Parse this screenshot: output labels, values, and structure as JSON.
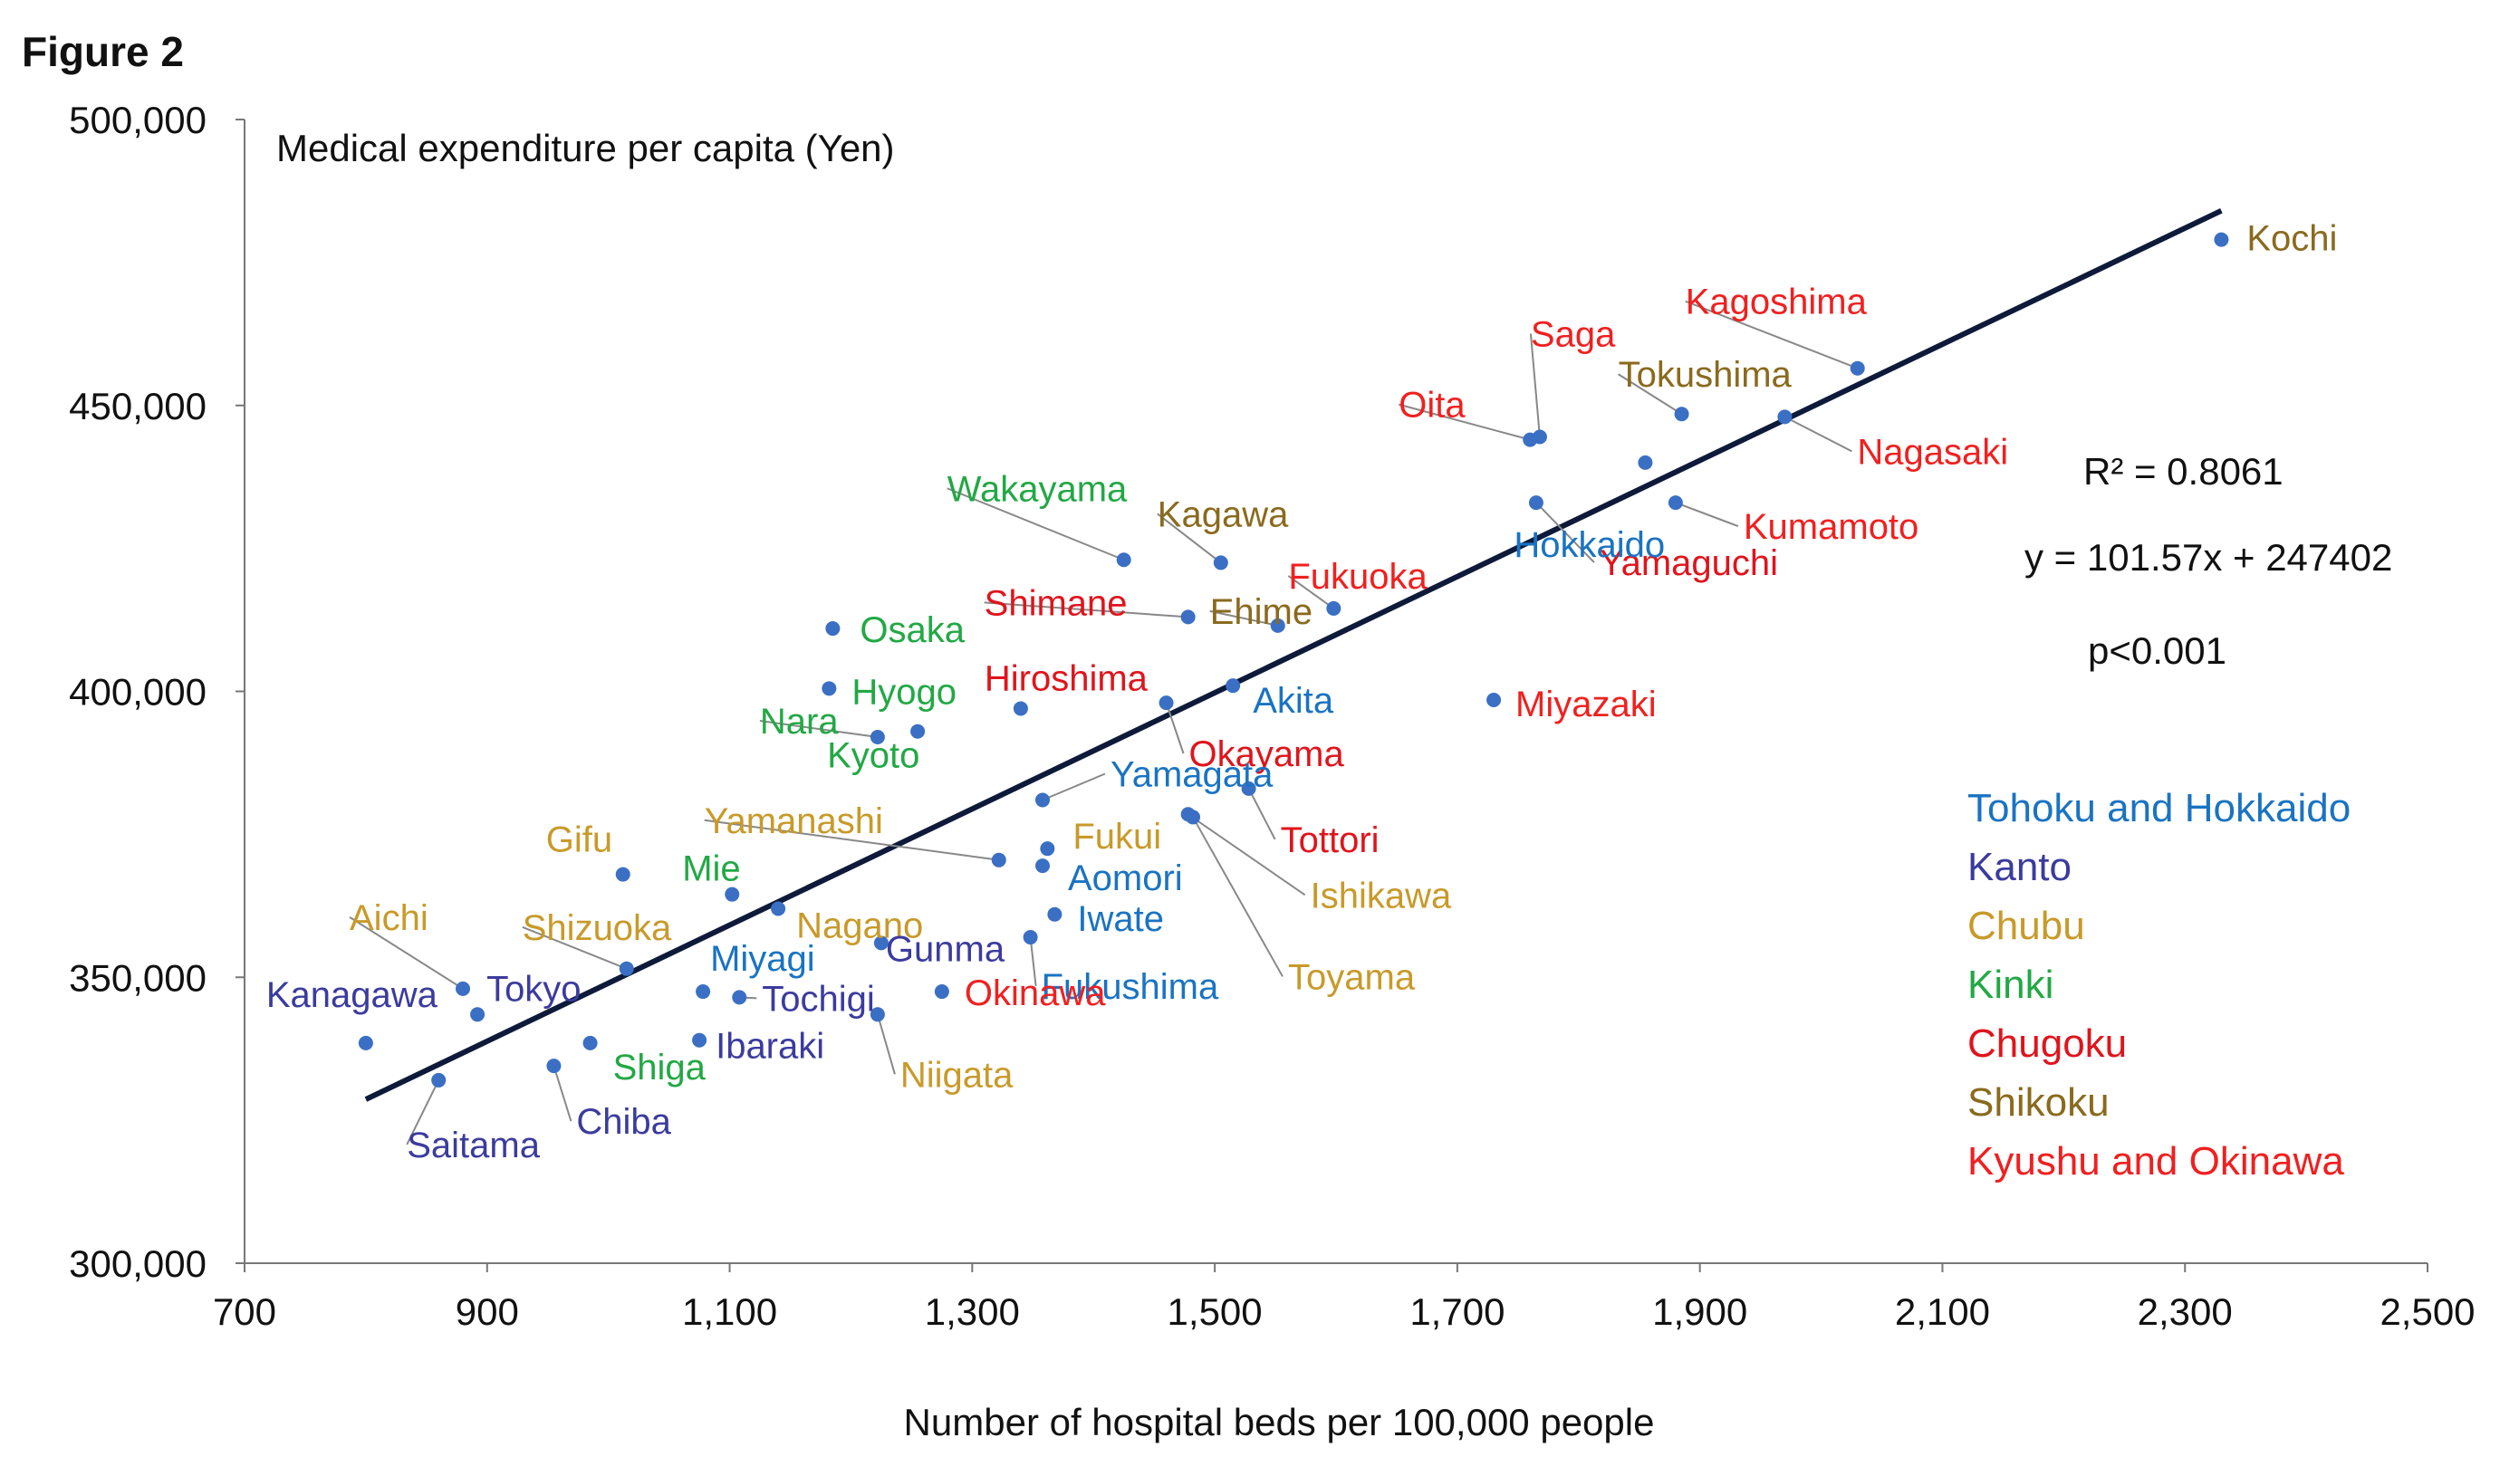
{
  "figure_label": "Figure 2",
  "colors": {
    "Tohoku and Hokkaido": "#1a73c2",
    "Kanto": "#3b3b9e",
    "Chubu": "#c89a2a",
    "Kinki": "#22a845",
    "Chugoku": "#e0141c",
    "Shikoku": "#8a6a1e",
    "Kyushu and Okinawa": "#f02020",
    "point": "#3a6fc4",
    "trendline": "#0d1a3a",
    "leader": "#888888"
  },
  "annotations": {
    "r2": "R² = 0.8061",
    "equation": "y = 101.57x + 247402",
    "p": "p<0.001"
  },
  "chart_data": {
    "type": "scatter",
    "title": "",
    "xlabel": "Number of hospital beds per 100,000 people",
    "ylabel": "Medical expenditure per capita (Yen)",
    "xlim": [
      700,
      2500
    ],
    "ylim": [
      300000,
      500000
    ],
    "x_ticks": [
      "700",
      "900",
      "1,100",
      "1,300",
      "1,500",
      "1,700",
      "1,900",
      "2,100",
      "2,300",
      "2,500"
    ],
    "y_ticks": [
      "300,000",
      "350,000",
      "400,000",
      "450,000",
      "500,000"
    ],
    "grid": false,
    "legend": {
      "placement": "right",
      "entries": [
        "Tohoku and Hokkaido",
        "Kanto",
        "Chubu",
        "Kinki",
        "Chugoku",
        "Shikoku",
        "Kyushu and Okinawa"
      ]
    },
    "trendline": {
      "slope": 101.57,
      "intercept": 247402,
      "x_range": [
        800,
        2330
      ]
    },
    "points": [
      {
        "name": "Kochi",
        "region": "Shikoku",
        "x": 2330,
        "y": 479000
      },
      {
        "name": "Kagoshima",
        "region": "Kyushu and Okinawa",
        "x": 2030,
        "y": 456500
      },
      {
        "name": "Saga",
        "region": "Kyushu and Okinawa",
        "x": 1768,
        "y": 444500
      },
      {
        "name": "Oita",
        "region": "Kyushu and Okinawa",
        "x": 1760,
        "y": 444000
      },
      {
        "name": "Tokushima",
        "region": "Shikoku",
        "x": 1885,
        "y": 448500
      },
      {
        "name": "Nagasaki",
        "region": "Kyushu and Okinawa",
        "x": 1970,
        "y": 448000
      },
      {
        "name": "Kumamoto",
        "region": "Kyushu and Okinawa",
        "x": 1880,
        "y": 433000
      },
      {
        "name": "Yamaguchi",
        "region": "Chugoku",
        "x": 1765,
        "y": 433000
      },
      {
        "name": "Kagawa",
        "region": "Shikoku",
        "x": 1505,
        "y": 422500
      },
      {
        "name": "Wakayama",
        "region": "Kinki",
        "x": 1425,
        "y": 423000
      },
      {
        "name": "Fukuoka",
        "region": "Kyushu and Okinawa",
        "x": 1598,
        "y": 414500
      },
      {
        "name": "Ehime",
        "region": "Shikoku",
        "x": 1552,
        "y": 411500
      },
      {
        "name": "Hokkaido",
        "region": "Tohoku and Hokkaido",
        "x": 1855,
        "y": 440000
      },
      {
        "name": "Shimane",
        "region": "Chugoku",
        "x": 1478,
        "y": 413000
      },
      {
        "name": "Osaka",
        "region": "Kinki",
        "x": 1185,
        "y": 411000
      },
      {
        "name": "Hiroshima",
        "region": "Chugoku",
        "x": 1340,
        "y": 397000
      },
      {
        "name": "Akita",
        "region": "Tohoku and Hokkaido",
        "x": 1515,
        "y": 401000
      },
      {
        "name": "Okayama",
        "region": "Chugoku",
        "x": 1460,
        "y": 398000
      },
      {
        "name": "Miyazaki",
        "region": "Kyushu and Okinawa",
        "x": 1730,
        "y": 398500
      },
      {
        "name": "Hyogo",
        "region": "Kinki",
        "x": 1182,
        "y": 400500
      },
      {
        "name": "Nara",
        "region": "Kinki",
        "x": 1222,
        "y": 392000
      },
      {
        "name": "Kyoto",
        "region": "Kinki",
        "x": 1255,
        "y": 393000
      },
      {
        "name": "Yamagata",
        "region": "Tohoku and Hokkaido",
        "x": 1358,
        "y": 381000
      },
      {
        "name": "Tottori",
        "region": "Chugoku",
        "x": 1528,
        "y": 383000
      },
      {
        "name": "Yamanashi",
        "region": "Chubu",
        "x": 1322,
        "y": 370500
      },
      {
        "name": "Fukui",
        "region": "Chubu",
        "x": 1362,
        "y": 372500
      },
      {
        "name": "Aomori",
        "region": "Tohoku and Hokkaido",
        "x": 1358,
        "y": 369500
      },
      {
        "name": "Ishikawa",
        "region": "Chubu",
        "x": 1478,
        "y": 378500
      },
      {
        "name": "Toyama",
        "region": "Chubu",
        "x": 1482,
        "y": 378000
      },
      {
        "name": "Gifu",
        "region": "Chubu",
        "x": 1012,
        "y": 368000
      },
      {
        "name": "Mie",
        "region": "Kinki",
        "x": 1102,
        "y": 364500
      },
      {
        "name": "Nagano",
        "region": "Chubu",
        "x": 1140,
        "y": 362000
      },
      {
        "name": "Iwate",
        "region": "Tohoku and Hokkaido",
        "x": 1368,
        "y": 361000
      },
      {
        "name": "Fukushima",
        "region": "Tohoku and Hokkaido",
        "x": 1348,
        "y": 357000
      },
      {
        "name": "Shizuoka",
        "region": "Chubu",
        "x": 1015,
        "y": 351500
      },
      {
        "name": "Gunma",
        "region": "Kanto",
        "x": 1225,
        "y": 356000
      },
      {
        "name": "Miyagi",
        "region": "Tohoku and Hokkaido",
        "x": 1078,
        "y": 347500
      },
      {
        "name": "Okinawa",
        "region": "Kyushu and Okinawa",
        "x": 1275,
        "y": 347500
      },
      {
        "name": "Aichi",
        "region": "Chubu",
        "x": 880,
        "y": 348000
      },
      {
        "name": "Tokyo",
        "region": "Kanto",
        "x": 892,
        "y": 343500
      },
      {
        "name": "Kanagawa",
        "region": "Kanto",
        "x": 800,
        "y": 338500
      },
      {
        "name": "Tochigi",
        "region": "Kanto",
        "x": 1108,
        "y": 346500
      },
      {
        "name": "Niigata",
        "region": "Chubu",
        "x": 1222,
        "y": 343500
      },
      {
        "name": "Ibaraki",
        "region": "Kanto",
        "x": 1075,
        "y": 339000
      },
      {
        "name": "Shiga",
        "region": "Kinki",
        "x": 985,
        "y": 338500
      },
      {
        "name": "Chiba",
        "region": "Kanto",
        "x": 955,
        "y": 334500
      },
      {
        "name": "Saitama",
        "region": "Kanto",
        "x": 860,
        "y": 332000
      }
    ]
  }
}
